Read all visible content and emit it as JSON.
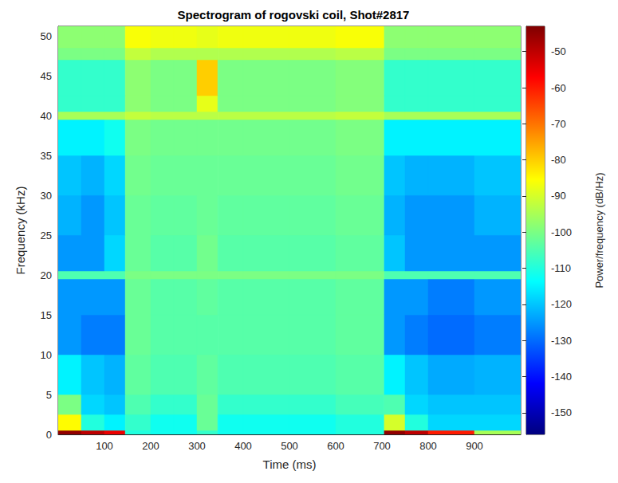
{
  "chart_data": {
    "type": "heatmap",
    "title": "Spectrogram of rogovski coil, Shot#2817",
    "xlabel": "Time (ms)",
    "ylabel": "Frequency (kHz)",
    "xlim": [
      0,
      1000
    ],
    "xticks": [
      100,
      200,
      300,
      400,
      500,
      600,
      700,
      800,
      900
    ],
    "ylim": [
      0,
      51.2
    ],
    "yticks": [
      0,
      5,
      10,
      15,
      20,
      25,
      30,
      35,
      40,
      45,
      50
    ],
    "time_edges": [
      0,
      50,
      100,
      145,
      200,
      250,
      300,
      345,
      400,
      500,
      600,
      705,
      750,
      800,
      900,
      1000
    ],
    "freq_edges": [
      0,
      0.5,
      2.5,
      5,
      10,
      15,
      19.5,
      20.5,
      25,
      30,
      35,
      39.5,
      40.5,
      42.5,
      47,
      48.5,
      51.2
    ],
    "power": [
      [
        -45,
        -50,
        -55,
        -110,
        -112,
        -112,
        -108,
        -112,
        -112,
        -112,
        -110,
        -45,
        -50,
        -60,
        -95
      ],
      [
        -85,
        -110,
        -115,
        -108,
        -112,
        -112,
        -102,
        -112,
        -112,
        -112,
        -110,
        -90,
        -110,
        -118,
        -118
      ],
      [
        -100,
        -118,
        -120,
        -105,
        -108,
        -108,
        -102,
        -108,
        -108,
        -108,
        -106,
        -105,
        -118,
        -120,
        -120
      ],
      [
        -115,
        -120,
        -122,
        -103,
        -105,
        -105,
        -103,
        -105,
        -105,
        -105,
        -104,
        -115,
        -120,
        -123,
        -122
      ],
      [
        -125,
        -128,
        -128,
        -102,
        -104,
        -104,
        -104,
        -104,
        -104,
        -104,
        -103,
        -125,
        -128,
        -130,
        -128
      ],
      [
        -125,
        -125,
        -125,
        -102,
        -104,
        -104,
        -103,
        -104,
        -104,
        -104,
        -103,
        -125,
        -125,
        -128,
        -125
      ],
      [
        -105,
        -105,
        -105,
        -100,
        -100,
        -100,
        -100,
        -100,
        -100,
        -100,
        -100,
        -105,
        -105,
        -105,
        -105
      ],
      [
        -125,
        -125,
        -118,
        -102,
        -104,
        -104,
        -101,
        -104,
        -104,
        -104,
        -103,
        -120,
        -125,
        -125,
        -125
      ],
      [
        -122,
        -125,
        -120,
        -102,
        -103,
        -103,
        -102,
        -103,
        -103,
        -103,
        -102,
        -122,
        -125,
        -125,
        -122
      ],
      [
        -120,
        -122,
        -118,
        -101,
        -102,
        -102,
        -102,
        -102,
        -102,
        -102,
        -101,
        -120,
        -122,
        -122,
        -120
      ],
      [
        -115,
        -115,
        -112,
        -100,
        -101,
        -101,
        -101,
        -101,
        -101,
        -101,
        -100,
        -115,
        -115,
        -115,
        -115
      ],
      [
        -95,
        -95,
        -95,
        -92,
        -93,
        -93,
        -93,
        -93,
        -93,
        -93,
        -92,
        -95,
        -95,
        -95,
        -95
      ],
      [
        -108,
        -108,
        -108,
        -98,
        -100,
        -100,
        -88,
        -100,
        -100,
        -100,
        -99,
        -108,
        -108,
        -108,
        -108
      ],
      [
        -108,
        -108,
        -108,
        -98,
        -100,
        -100,
        -80,
        -100,
        -100,
        -100,
        -99,
        -108,
        -108,
        -108,
        -108
      ],
      [
        -100,
        -100,
        -100,
        -92,
        -94,
        -94,
        -94,
        -94,
        -94,
        -94,
        -93,
        -100,
        -100,
        -100,
        -100
      ],
      [
        -98,
        -98,
        -98,
        -86,
        -87,
        -87,
        -88,
        -87,
        -87,
        -87,
        -86,
        -98,
        -98,
        -98,
        -98
      ]
    ],
    "colorbar": {
      "label": "Power/frequency (dB/Hz)",
      "range": [
        -156,
        -43
      ],
      "ticks": [
        -150,
        -140,
        -130,
        -120,
        -110,
        -100,
        -90,
        -80,
        -70,
        -60,
        -50
      ]
    }
  }
}
